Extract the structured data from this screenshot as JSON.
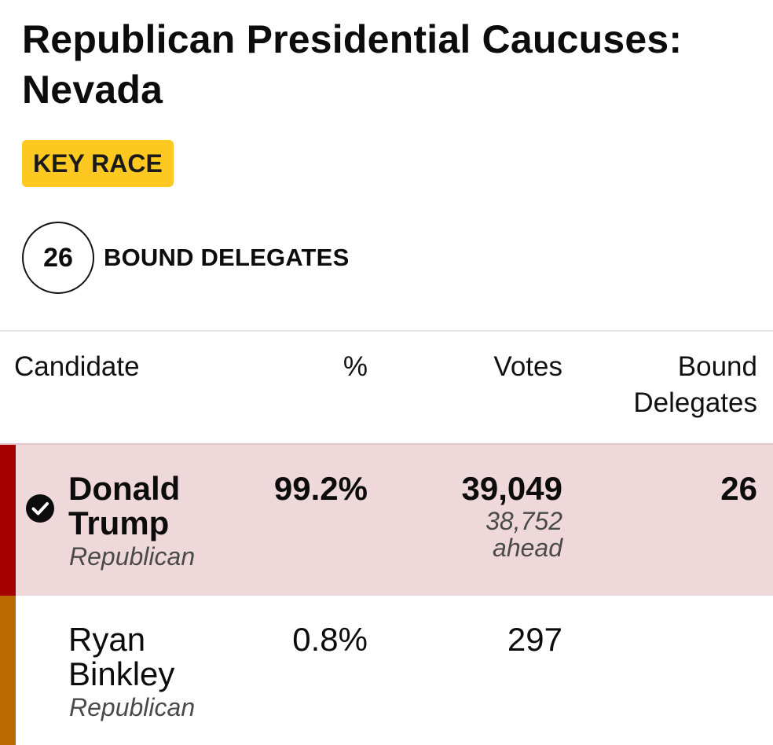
{
  "race": {
    "title": "Republican Presidential Caucuses: Nevada",
    "badge": "KEY RACE",
    "bound_delegates_count": "26",
    "bound_delegates_label": "BOUND DELEGATES"
  },
  "table": {
    "headers": {
      "candidate": "Candidate",
      "pct": "%",
      "votes": "Votes",
      "bound": "Bound Delegates"
    },
    "rows": [
      {
        "name_first": "Donald",
        "name_last": "Trump",
        "party": "Republican",
        "pct": "99.2%",
        "votes": "39,049",
        "margin_votes": "38,752",
        "margin_label": "ahead",
        "bound": "26",
        "winner": true,
        "party_color": "#a50000"
      },
      {
        "name_first": "Ryan",
        "name_last": "Binkley",
        "party": "Republican",
        "pct": "0.8%",
        "votes": "297",
        "bound": "",
        "winner": false,
        "party_color": "#b86a00"
      }
    ]
  },
  "colors": {
    "badge": "#fdc920",
    "winner_row_bg": "#efd8da"
  },
  "icons": {
    "winner": "checkmark-circle-icon"
  }
}
